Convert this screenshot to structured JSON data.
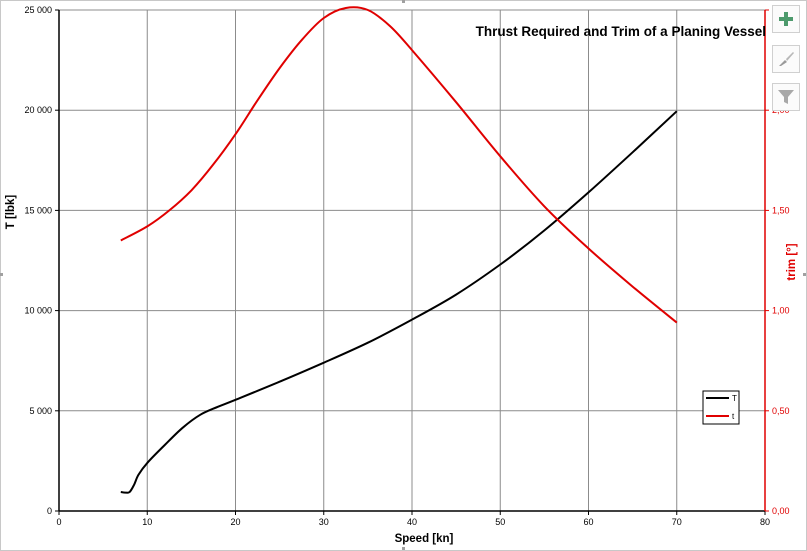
{
  "chart_data": {
    "type": "line",
    "title": "Thrust Required and Trim of a Planing Vessel",
    "xlabel": "Speed [kn]",
    "ylabel": "T [lbk]",
    "y2label": "trim [°]",
    "xlim": [
      0,
      80
    ],
    "ylim": [
      0,
      25000
    ],
    "y2lim": [
      0,
      2.5
    ],
    "x_ticks": [
      "0",
      "10",
      "20",
      "30",
      "40",
      "50",
      "60",
      "70",
      "80"
    ],
    "y_ticks": [
      "0",
      "5 000",
      "10 000",
      "15 000",
      "20 000",
      "25 000"
    ],
    "y2_ticks": [
      "0,00",
      "0,50",
      "1,00",
      "1,50",
      "2,00",
      "2,50"
    ],
    "grid": true,
    "legend_position": "bottom-right",
    "series": [
      {
        "name": "T",
        "axis": "left",
        "color": "#000000",
        "x": [
          7,
          7.5,
          8,
          8.5,
          9,
          10,
          12,
          14,
          16,
          18,
          20,
          25,
          30,
          35,
          40,
          45,
          50,
          55,
          60,
          65,
          70
        ],
        "y": [
          950,
          920,
          950,
          1300,
          1800,
          2400,
          3300,
          4150,
          4800,
          5200,
          5550,
          6450,
          7400,
          8400,
          9550,
          10800,
          12300,
          14000,
          15900,
          17900,
          19950
        ]
      },
      {
        "name": "t",
        "axis": "right",
        "color": "#e00000",
        "x": [
          7,
          10,
          12.5,
          15,
          17.5,
          20,
          22.5,
          25,
          27.5,
          30,
          32.5,
          35,
          37.5,
          40,
          45,
          50,
          55,
          60,
          65,
          70
        ],
        "y": [
          1.35,
          1.42,
          1.5,
          1.6,
          1.73,
          1.88,
          2.05,
          2.21,
          2.35,
          2.46,
          2.51,
          2.5,
          2.42,
          2.3,
          2.04,
          1.77,
          1.52,
          1.31,
          1.12,
          0.94
        ]
      }
    ]
  },
  "toolbar": {
    "add_icon": "plus-icon",
    "style_icon": "brush-icon",
    "filter_icon": "funnel-icon"
  }
}
